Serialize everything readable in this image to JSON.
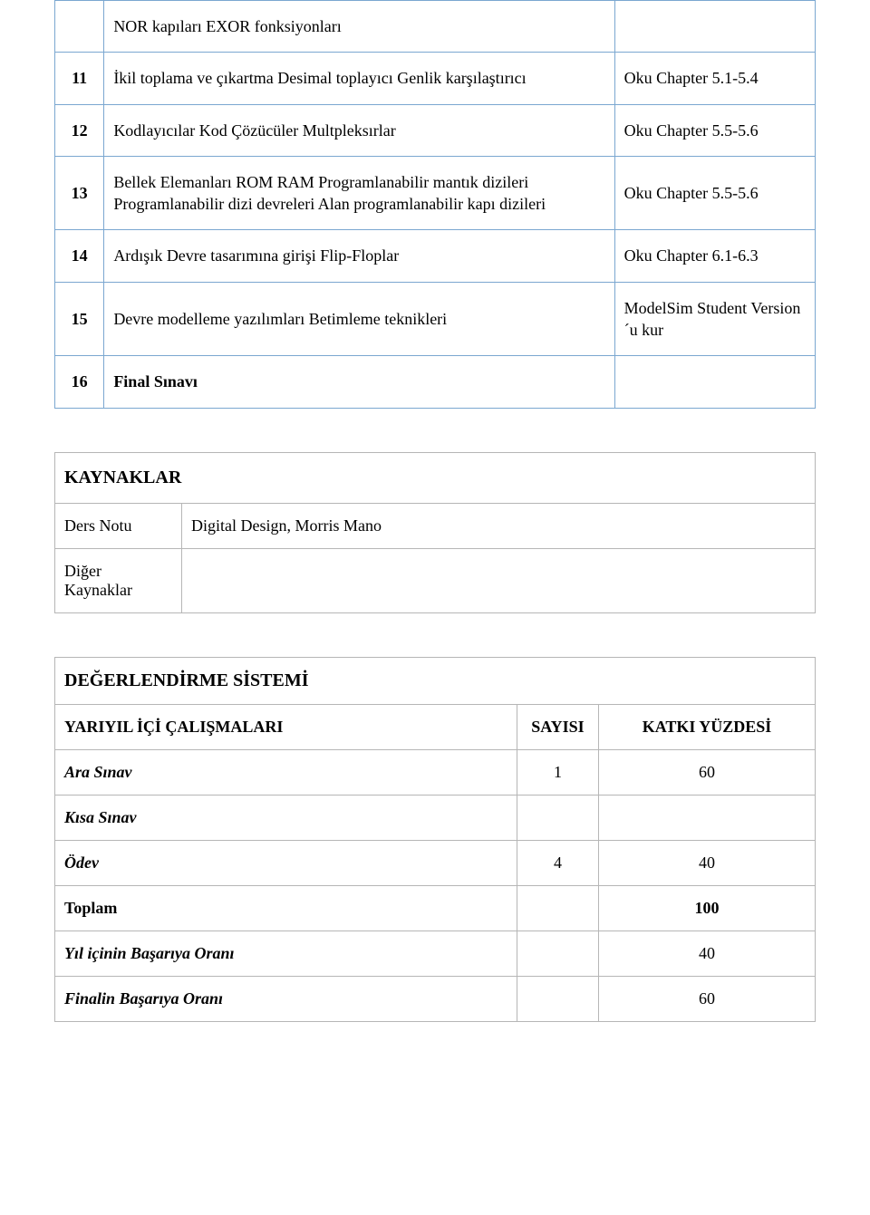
{
  "schedule": {
    "rows": [
      {
        "num": "",
        "topic": "NOR kapıları EXOR fonksiyonları",
        "note": "",
        "bold": false
      },
      {
        "num": "11",
        "topic": "İkil toplama ve çıkartma Desimal toplayıcı Genlik karşılaştırıcı",
        "note": "Oku Chapter 5.1-5.4",
        "bold": false
      },
      {
        "num": "12",
        "topic": "Kodlayıcılar Kod Çözücüler Multpleksırlar",
        "note": "Oku Chapter 5.5-5.6",
        "bold": false
      },
      {
        "num": "13",
        "topic": "Bellek Elemanları ROM RAM Programlanabilir mantık dizileri Programlanabilir dizi devreleri Alan programlanabilir kapı dizileri",
        "note": "Oku Chapter 5.5-5.6",
        "bold": false
      },
      {
        "num": "14",
        "topic": "Ardışık Devre tasarımına girişi Flip-Floplar",
        "note": "Oku Chapter 6.1-6.3",
        "bold": false
      },
      {
        "num": "15",
        "topic": "Devre modelleme yazılımları Betimleme teknikleri",
        "note": "ModelSim Student Version´u kur",
        "bold": false
      },
      {
        "num": "16",
        "topic": "Final Sınavı",
        "note": "",
        "bold": true
      }
    ],
    "border_color": "#7ba7d0"
  },
  "resources": {
    "heading": "KAYNAKLAR",
    "rows": [
      {
        "label": "Ders Notu",
        "value": "Digital Design, Morris Mano"
      },
      {
        "label": "Diğer Kaynaklar",
        "value": ""
      }
    ],
    "border_color": "#b6b6b6"
  },
  "evaluation": {
    "heading": "DEĞERLENDİRME SİSTEMİ",
    "header": {
      "name": "YARIYIL İÇİ ÇALIŞMALARI",
      "count": "SAYISI",
      "percent": "KATKI YÜZDESİ"
    },
    "rows": [
      {
        "name": "Ara Sınav",
        "count": "1",
        "percent": "60",
        "italic": true,
        "bold_row": false
      },
      {
        "name": "Kısa Sınav",
        "count": "",
        "percent": "",
        "italic": true,
        "bold_row": false
      },
      {
        "name": "Ödev",
        "count": "4",
        "percent": "40",
        "italic": true,
        "bold_row": false
      },
      {
        "name": "Toplam",
        "count": "",
        "percent": "100",
        "italic": false,
        "bold_row": true
      },
      {
        "name": "Yıl içinin Başarıya Oranı",
        "count": "",
        "percent": "40",
        "italic": true,
        "bold_row": false
      },
      {
        "name": "Finalin Başarıya Oranı",
        "count": "",
        "percent": "60",
        "italic": true,
        "bold_row": false
      }
    ],
    "border_color": "#b6b6b6"
  }
}
